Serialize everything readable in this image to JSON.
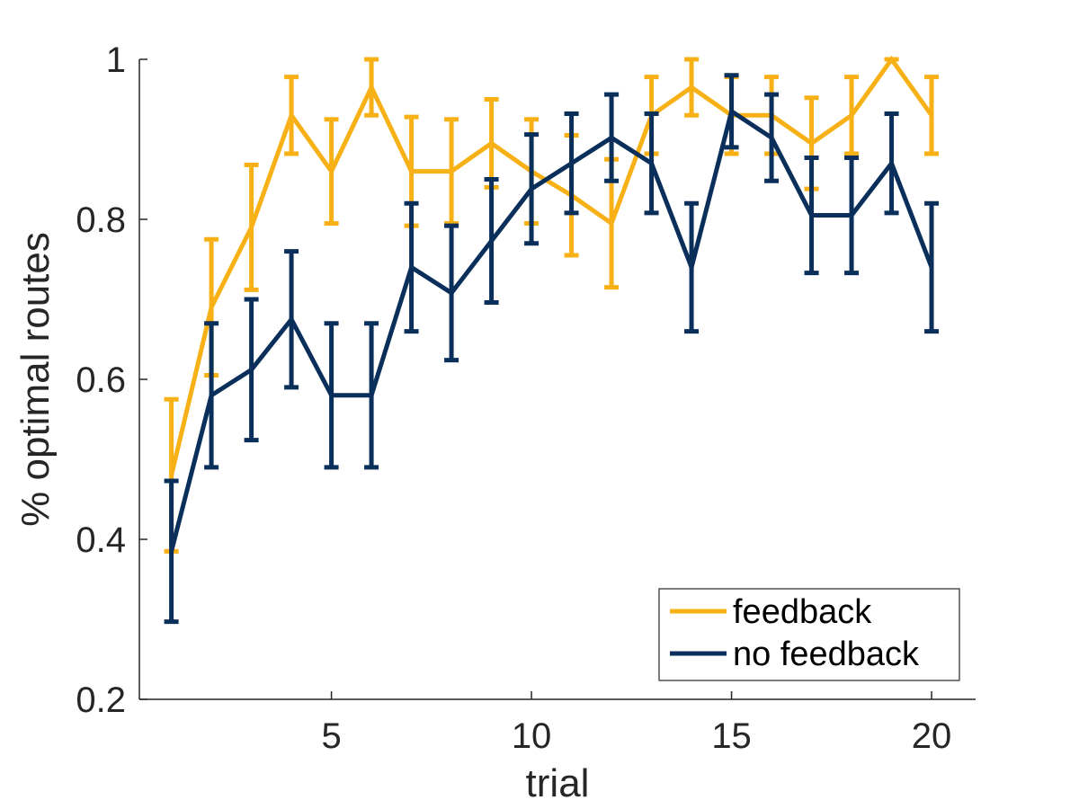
{
  "chart_data": {
    "type": "line",
    "title": "",
    "xlabel": "trial",
    "ylabel": "% optimal routes",
    "xlim": [
      0.2,
      21.1
    ],
    "ylim": [
      0.2,
      1.0
    ],
    "xticks": [
      5,
      10,
      15,
      20
    ],
    "yticks": [
      0.2,
      0.4,
      0.6,
      0.8,
      1.0
    ],
    "xtick_labels": [
      "5",
      "10",
      "15",
      "20"
    ],
    "ytick_labels": [
      "0.2",
      "0.4",
      "0.6",
      "0.8",
      "1"
    ],
    "grid": false,
    "legend_position": "bottom-right",
    "x": [
      1,
      2,
      3,
      4,
      5,
      6,
      7,
      8,
      9,
      10,
      11,
      12,
      13,
      14,
      15,
      16,
      17,
      18,
      19,
      20
    ],
    "series": [
      {
        "name": "feedback",
        "color": "#F7B116",
        "values": [
          0.48,
          0.69,
          0.79,
          0.93,
          0.86,
          0.965,
          0.86,
          0.86,
          0.895,
          0.86,
          0.83,
          0.795,
          0.93,
          0.965,
          0.93,
          0.93,
          0.895,
          0.93,
          1.0,
          0.93
        ],
        "errors": [
          0.095,
          0.085,
          0.078,
          0.048,
          0.065,
          0.035,
          0.068,
          0.065,
          0.055,
          0.065,
          0.075,
          0.08,
          0.048,
          0.035,
          0.048,
          0.048,
          0.057,
          0.048,
          0.0,
          0.048
        ]
      },
      {
        "name": "no feedback",
        "color": "#0B2F5B",
        "values": [
          0.385,
          0.58,
          0.612,
          0.675,
          0.58,
          0.58,
          0.74,
          0.708,
          0.773,
          0.838,
          0.87,
          0.902,
          0.87,
          0.74,
          0.935,
          0.902,
          0.805,
          0.805,
          0.87,
          0.74
        ],
        "errors": [
          0.088,
          0.09,
          0.088,
          0.085,
          0.09,
          0.09,
          0.08,
          0.084,
          0.077,
          0.068,
          0.062,
          0.054,
          0.062,
          0.08,
          0.045,
          0.054,
          0.072,
          0.072,
          0.062,
          0.08
        ]
      }
    ]
  }
}
